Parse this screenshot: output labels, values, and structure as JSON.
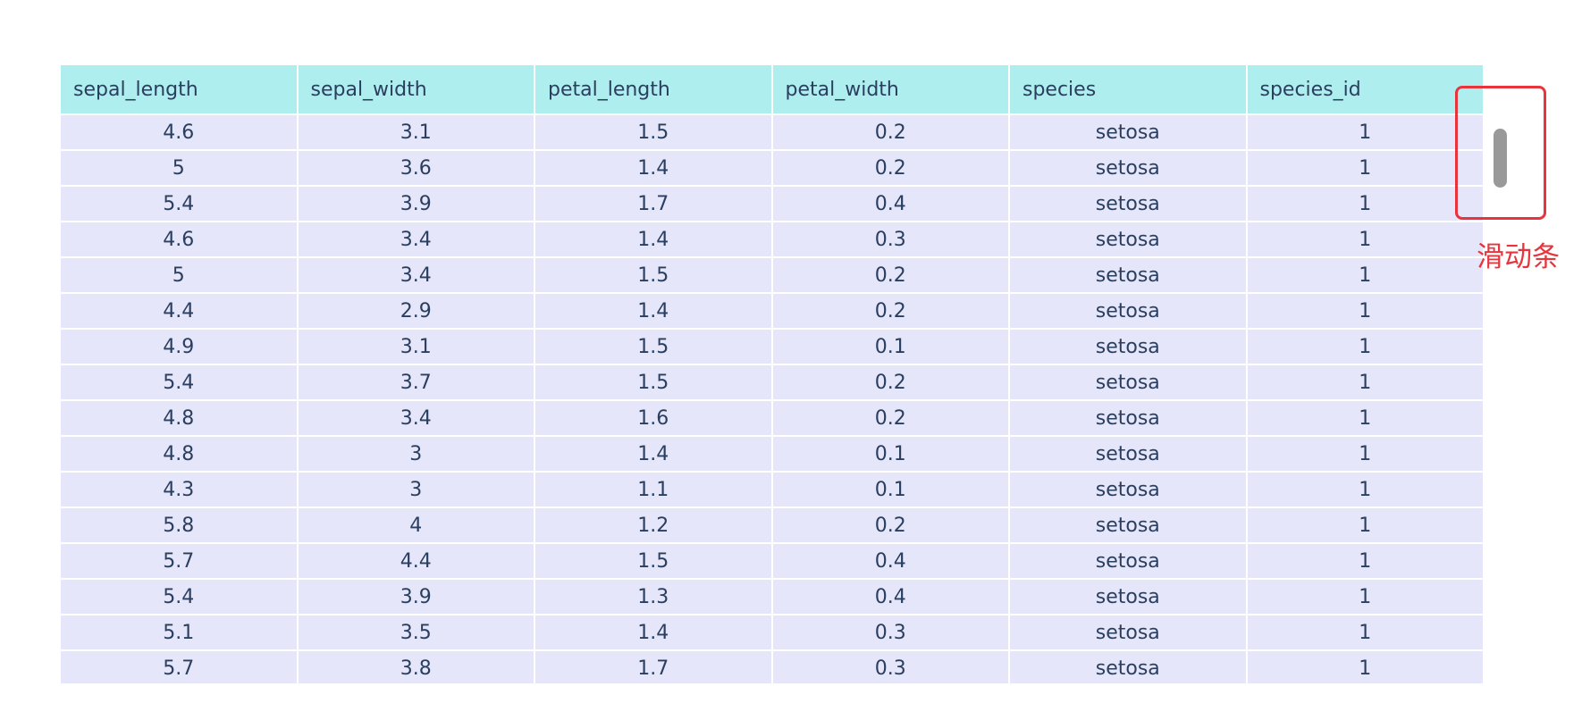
{
  "table": {
    "header": [
      "sepal_length",
      "sepal_width",
      "petal_length",
      "petal_width",
      "species",
      "species_id"
    ],
    "rows": [
      [
        "4.6",
        "3.1",
        "1.5",
        "0.2",
        "setosa",
        "1"
      ],
      [
        "5",
        "3.6",
        "1.4",
        "0.2",
        "setosa",
        "1"
      ],
      [
        "5.4",
        "3.9",
        "1.7",
        "0.4",
        "setosa",
        "1"
      ],
      [
        "4.6",
        "3.4",
        "1.4",
        "0.3",
        "setosa",
        "1"
      ],
      [
        "5",
        "3.4",
        "1.5",
        "0.2",
        "setosa",
        "1"
      ],
      [
        "4.4",
        "2.9",
        "1.4",
        "0.2",
        "setosa",
        "1"
      ],
      [
        "4.9",
        "3.1",
        "1.5",
        "0.1",
        "setosa",
        "1"
      ],
      [
        "5.4",
        "3.7",
        "1.5",
        "0.2",
        "setosa",
        "1"
      ],
      [
        "4.8",
        "3.4",
        "1.6",
        "0.2",
        "setosa",
        "1"
      ],
      [
        "4.8",
        "3",
        "1.4",
        "0.1",
        "setosa",
        "1"
      ],
      [
        "4.3",
        "3",
        "1.1",
        "0.1",
        "setosa",
        "1"
      ],
      [
        "5.8",
        "4",
        "1.2",
        "0.2",
        "setosa",
        "1"
      ],
      [
        "5.7",
        "4.4",
        "1.5",
        "0.4",
        "setosa",
        "1"
      ],
      [
        "5.4",
        "3.9",
        "1.3",
        "0.4",
        "setosa",
        "1"
      ],
      [
        "5.1",
        "3.5",
        "1.4",
        "0.3",
        "setosa",
        "1"
      ],
      [
        "5.7",
        "3.8",
        "1.7",
        "0.3",
        "setosa",
        "1"
      ]
    ]
  },
  "annotation": "滑动条"
}
